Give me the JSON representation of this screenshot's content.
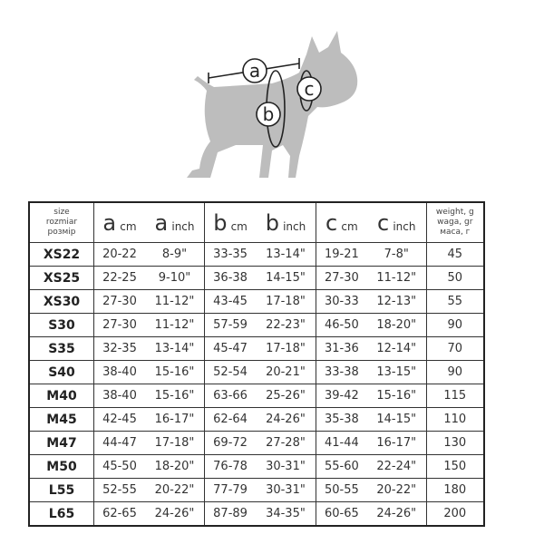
{
  "diagram": {
    "labels": [
      "a",
      "b",
      "c"
    ],
    "silhouette_color": "#bdbdbd"
  },
  "table": {
    "header": {
      "size": [
        "size",
        "rozmiar",
        "розмір"
      ],
      "columns": [
        {
          "letter": "a",
          "unit": "cm"
        },
        {
          "letter": "a",
          "unit": "inch"
        },
        {
          "letter": "b",
          "unit": "cm"
        },
        {
          "letter": "b",
          "unit": "inch"
        },
        {
          "letter": "c",
          "unit": "cm"
        },
        {
          "letter": "c",
          "unit": "inch"
        }
      ],
      "weight": [
        "weight, g",
        "waga, gr",
        "маса, г"
      ]
    },
    "rows": [
      [
        "XS22",
        "20-22",
        "8-9\"",
        "33-35",
        "13-14\"",
        "19-21",
        "7-8\"",
        "45"
      ],
      [
        "XS25",
        "22-25",
        "9-10\"",
        "36-38",
        "14-15\"",
        "27-30",
        "11-12\"",
        "50"
      ],
      [
        "XS30",
        "27-30",
        "11-12\"",
        "43-45",
        "17-18\"",
        "30-33",
        "12-13\"",
        "55"
      ],
      [
        "S30",
        "27-30",
        "11-12\"",
        "57-59",
        "22-23\"",
        "46-50",
        "18-20\"",
        "90"
      ],
      [
        "S35",
        "32-35",
        "13-14\"",
        "45-47",
        "17-18\"",
        "31-36",
        "12-14\"",
        "70"
      ],
      [
        "S40",
        "38-40",
        "15-16\"",
        "52-54",
        "20-21\"",
        "33-38",
        "13-15\"",
        "90"
      ],
      [
        "M40",
        "38-40",
        "15-16\"",
        "63-66",
        "25-26\"",
        "39-42",
        "15-16\"",
        "115"
      ],
      [
        "M45",
        "42-45",
        "16-17\"",
        "62-64",
        "24-26\"",
        "35-38",
        "14-15\"",
        "110"
      ],
      [
        "M47",
        "44-47",
        "17-18\"",
        "69-72",
        "27-28\"",
        "41-44",
        "16-17\"",
        "130"
      ],
      [
        "M50",
        "45-50",
        "18-20\"",
        "76-78",
        "30-31\"",
        "55-60",
        "22-24\"",
        "150"
      ],
      [
        "L55",
        "52-55",
        "20-22\"",
        "77-79",
        "30-31\"",
        "50-55",
        "20-22\"",
        "180"
      ],
      [
        "L65",
        "62-65",
        "24-26\"",
        "87-89",
        "34-35\"",
        "60-65",
        "24-26\"",
        "200"
      ]
    ]
  }
}
